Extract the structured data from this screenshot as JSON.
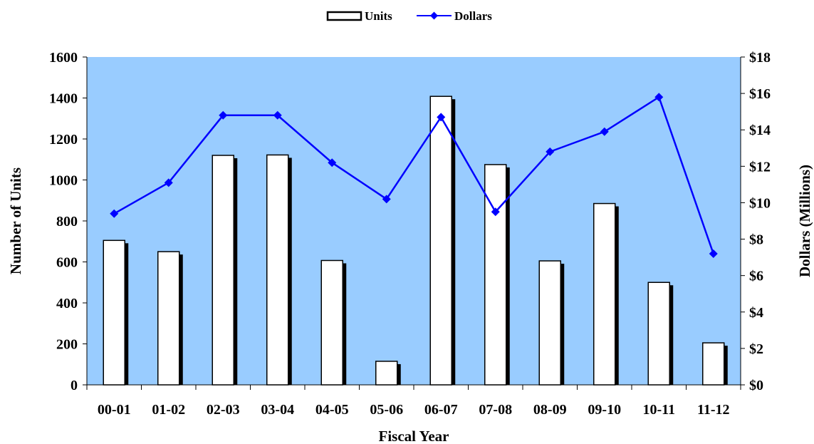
{
  "chart_data": {
    "type": "bar",
    "title": "",
    "xlabel": "Fiscal Year",
    "ylabel": "Number of Units",
    "y2label": "Dollars (Millions)",
    "categories": [
      "00-01",
      "01-02",
      "02-03",
      "03-04",
      "04-05",
      "05-06",
      "06-07",
      "07-08",
      "08-09",
      "09-10",
      "10-11",
      "11-12"
    ],
    "ylim": [
      0,
      1600
    ],
    "y2lim": [
      0,
      18
    ],
    "yticks": [
      "0",
      "200",
      "400",
      "600",
      "800",
      "1000",
      "1200",
      "1400",
      "1600"
    ],
    "y2ticks": [
      "$0",
      "$2",
      "$4",
      "$6",
      "$8",
      "$10",
      "$12",
      "$14",
      "$16",
      "$18"
    ],
    "grid": false,
    "legend_position": "top-center",
    "series": [
      {
        "name": "Units",
        "type": "bar",
        "axis": "left",
        "values": [
          705,
          650,
          1120,
          1122,
          607,
          115,
          1408,
          1075,
          605,
          885,
          500,
          205
        ]
      },
      {
        "name": "Dollars",
        "type": "line",
        "axis": "right",
        "values": [
          9.4,
          11.1,
          14.8,
          14.8,
          12.2,
          10.2,
          14.7,
          9.5,
          12.8,
          13.9,
          15.8,
          7.2
        ]
      }
    ],
    "colors": {
      "plot_background": "#99ccff",
      "bar_fill": "#ffffff",
      "bar_shadow": "#000000",
      "line": "#0000ff"
    }
  }
}
